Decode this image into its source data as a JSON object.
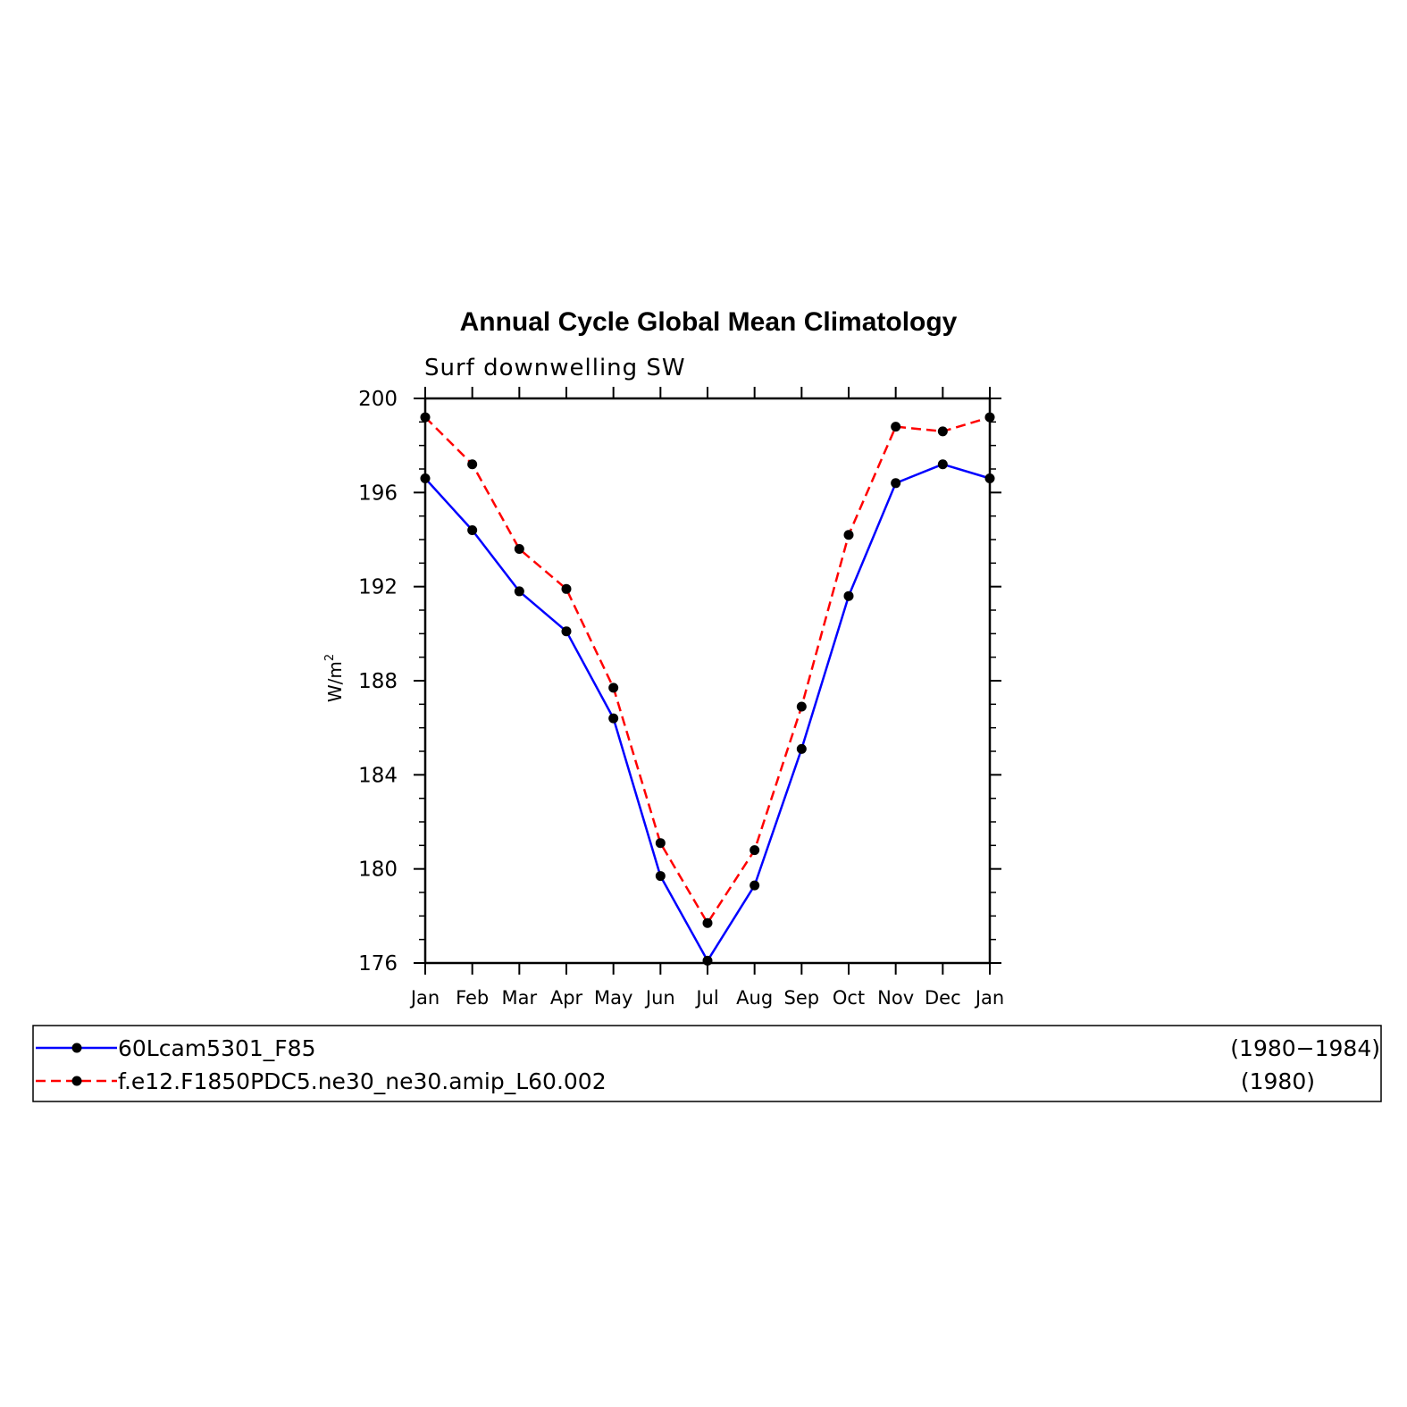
{
  "chart_data": {
    "type": "line",
    "title": "Annual Cycle Global Mean Climatology",
    "subtitle": "Surf downwelling SW",
    "ylabel_base": "W/m",
    "ylabel_sup": "2",
    "xlabel": "",
    "categories": [
      "Jan",
      "Feb",
      "Mar",
      "Apr",
      "May",
      "Jun",
      "Jul",
      "Aug",
      "Sep",
      "Oct",
      "Nov",
      "Dec",
      "Jan"
    ],
    "ylim": [
      176,
      200
    ],
    "yticks": [
      "176",
      "180",
      "184",
      "188",
      "192",
      "196",
      "200"
    ],
    "grid": false,
    "legend_position": "bottom",
    "series": [
      {
        "name": "60Lcam5301_F85",
        "period": "(1980−1984)",
        "color": "#0000ff",
        "style": "solid",
        "marker": "filled-circle",
        "values": [
          196.6,
          194.4,
          191.8,
          190.1,
          186.4,
          179.7,
          176.1,
          179.3,
          185.1,
          191.6,
          196.4,
          197.2,
          196.6
        ]
      },
      {
        "name": "f.e12.F1850PDC5.ne30_ne30.amip_L60.002",
        "period": "(1980)",
        "color": "#ff0000",
        "style": "dashed",
        "marker": "filled-circle",
        "values": [
          199.2,
          197.2,
          193.6,
          191.9,
          187.7,
          181.1,
          177.7,
          180.8,
          186.9,
          194.2,
          198.8,
          198.6,
          199.2
        ]
      }
    ]
  }
}
